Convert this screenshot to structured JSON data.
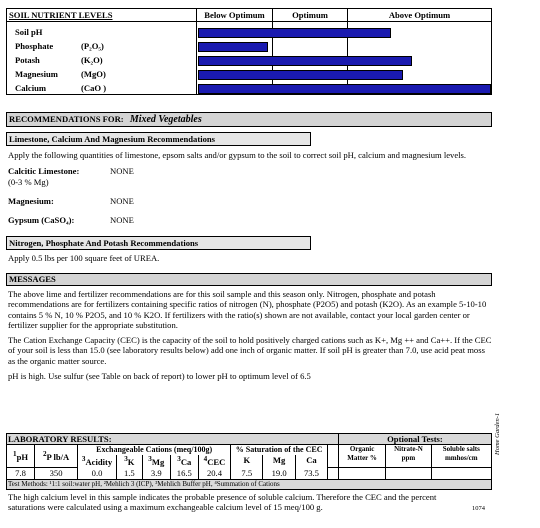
{
  "nutrient_chart": {
    "title": "SOIL  NUTRIENT LEVELS",
    "headers": [
      "Below Optimum",
      "Optimum",
      "Above Optimum"
    ],
    "rows": [
      {
        "name": "Soil pH",
        "formula": "",
        "level": 0.66
      },
      {
        "name": "Phosphate",
        "formula": "(P₂O₅)",
        "level": 0.24
      },
      {
        "name": "Potash",
        "formula": "(K₂O)",
        "level": 0.73
      },
      {
        "name": "Magnesium",
        "formula": "(MgO)",
        "level": 0.7
      },
      {
        "name": "Calcium",
        "formula": "(CaO )",
        "level": 1.0
      }
    ],
    "bar_color": "#1a1ab0"
  },
  "recommendations": {
    "heading": "RECOMMENDATIONS FOR:",
    "crop": "Mixed Vegetables",
    "lime_heading": "Limestone, Calcium And Magnesium Recommendations",
    "lime_intro": "Apply the following quantities of limestone, epsom salts and/or gypsum to the soil to correct soil pH, calcium and magnesium levels.",
    "items": [
      {
        "label": "Calcitic Limestone:",
        "sub": "(0-3 % Mg)",
        "value": "NONE"
      },
      {
        "label": "Magnesium:",
        "sub": "",
        "value": "NONE"
      },
      {
        "label": "Gypsum (CaSO₄):",
        "sub": "",
        "value": "NONE"
      }
    ],
    "npk_heading": "Nitrogen, Phosphate And Potash Recommendations",
    "npk_text": "Apply 0.5 lbs per 100 square feet of UREA."
  },
  "messages": {
    "heading": "MESSAGES",
    "p1": "The above lime and fertilizer recommendations are for this soil sample and this season only.  Nitrogen, phosphate and potash recommendations are for fertilizers containing specific ratios of nitrogen (N), phosphate (P2O5) and potash (K2O).  As an example 5-10-10 contains 5 % N, 10 % P2O5,  and 10 % K2O.  If fertilizers with the ratio(s) shown are not available, contact your local garden center or fertilizer supplier for the appropriate substitution.",
    "p2": "The Cation Exchange Capacity (CEC) is the capacity of the soil to hold positively charged cations such as K+, Mg ++ and Ca++.  If the CEC of your soil is less than 15.0 (see laboratory results below) add one inch of organic matter.  If soil pH is greater than 7.0, use acid peat moss as the organic matter source.",
    "p3": "pH is high.  Use sulfur (see Table on back of report) to lower pH to optimum level of 6.5"
  },
  "lab": {
    "heading": "LABORATORY RESULTS:",
    "optional_heading": "Optional Tests:",
    "exch_heading": "Exchangeable Cations (meq/100g)",
    "sat_heading": "% Saturation of the CEC",
    "cols": {
      "ph": "pH",
      "ph_sup": "1",
      "p": "P lb/A",
      "p_sup": "2",
      "acidity": "Acidity",
      "acidity_sup": "3",
      "k": "K",
      "k_sup": "3",
      "mg": "Mg",
      "mg_sup": "3",
      "ca": "Ca",
      "ca_sup": "3",
      "cec": "CEC",
      "cec_sup": "4",
      "sat_k": "K",
      "sat_mg": "Mg",
      "sat_ca": "Ca",
      "om": "Organic Matter %",
      "nitrate": "Nitrate-N ppm",
      "salts": "Soluble salts mmhos/cm"
    },
    "values": {
      "ph": "7.8",
      "p": "350",
      "acidity": "0.0",
      "k": "1.5",
      "mg": "3.9",
      "ca": "16.5",
      "cec": "20.4",
      "sat_k": "7.5",
      "sat_mg": "19.0",
      "sat_ca": "73.5",
      "om": "",
      "nitrate": "",
      "salts": ""
    },
    "methods": "Test Methods: ¹1:1 soil:water pH, ²Mehlich 3 (ICP), ³Mehlich Buffer pH, ⁴Summation of Cations",
    "note": "The high calcium level in this sample indicates the probable presence of soluble calcium.  Therefore the CEC and the percent saturations were calculated using a maximum exchangeable calcium level of 15 meq/100 g.",
    "report_no": "1074",
    "side_label": "Home Garden-1"
  }
}
